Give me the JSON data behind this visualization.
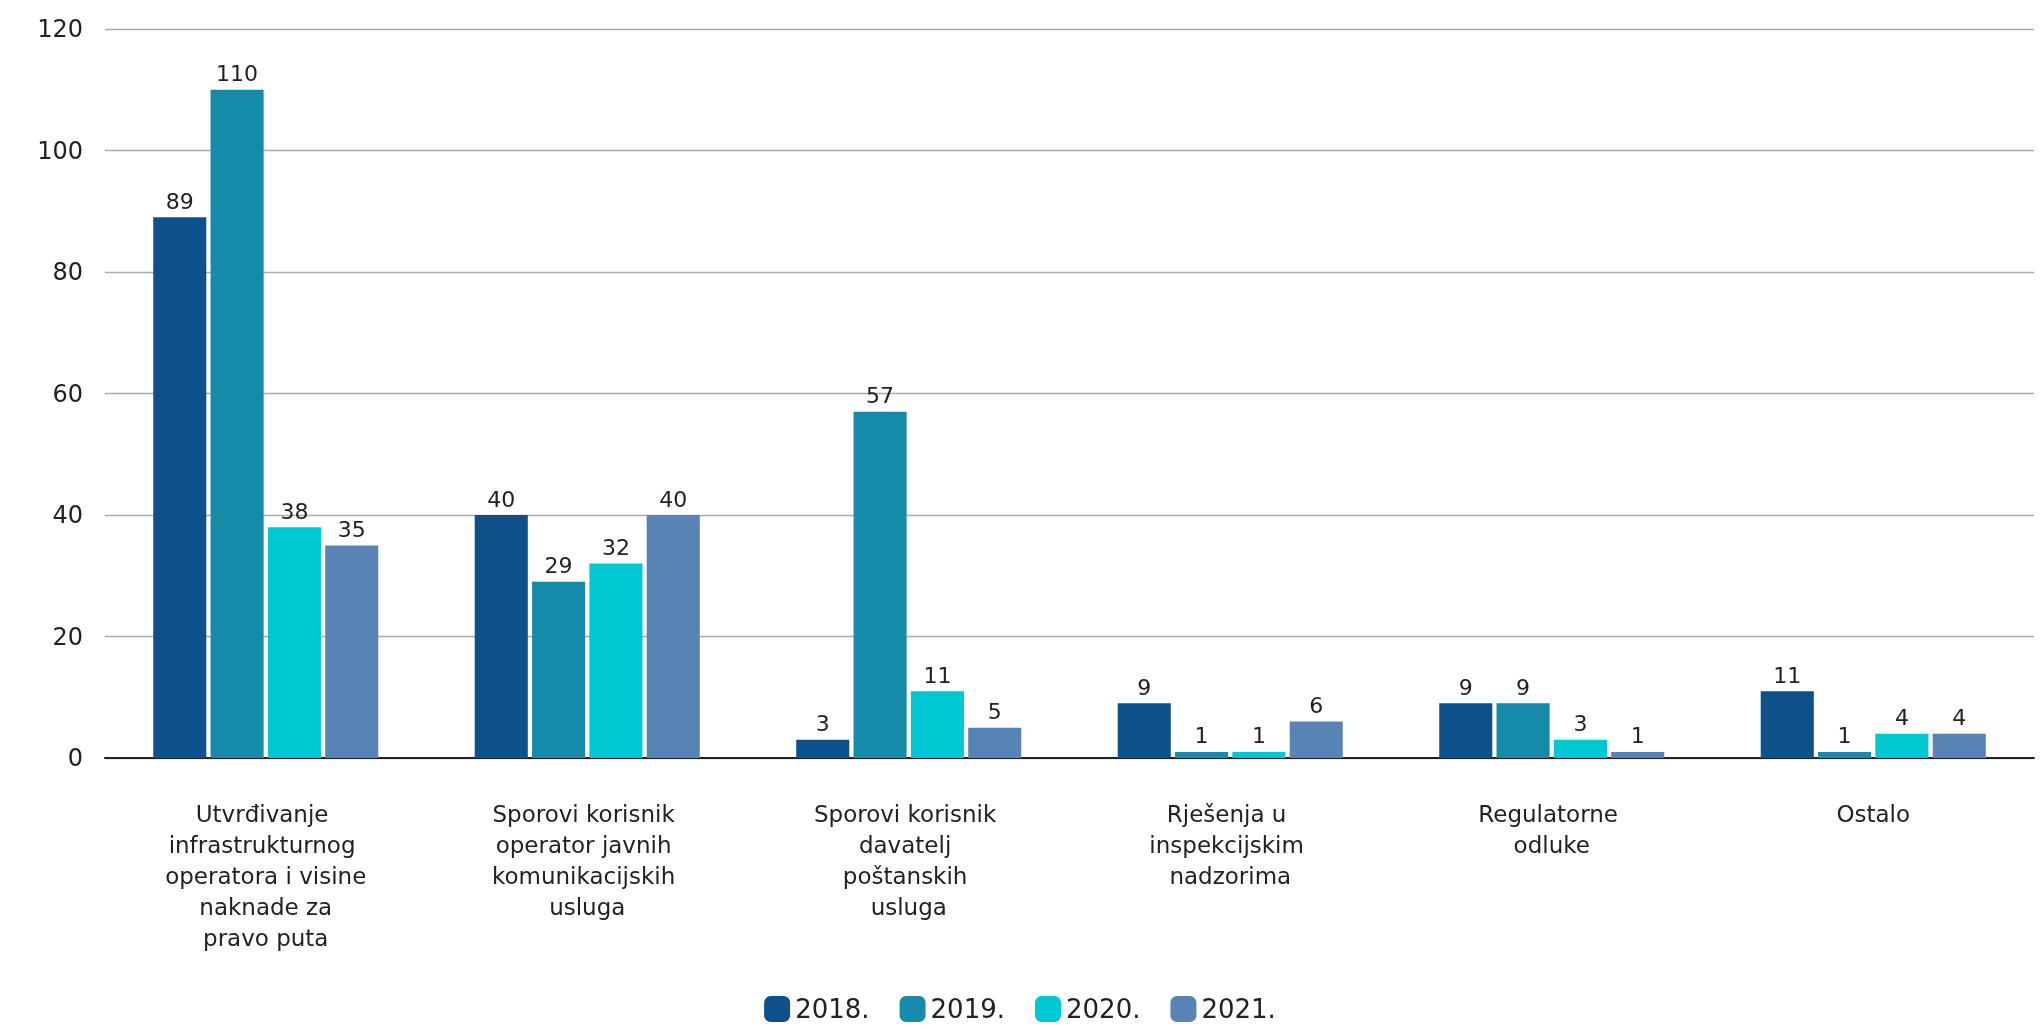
{
  "chart_data": {
    "type": "bar",
    "categories": [
      "Utvrđivanje infrastrukturnog operatora i visine naknade za pravo puta",
      "Sporovi korisnik operator javnih komunikacijskih usluga",
      "Sporovi korisnik davatelj poštanskih usluga",
      "Rješenja u inspekcijskim nadzorima",
      "Regulatorne odluke",
      "Ostalo"
    ],
    "series": [
      {
        "name": "2018.",
        "color": "#0e508a",
        "values": [
          89,
          40,
          3,
          9,
          9,
          11
        ]
      },
      {
        "name": "2019.",
        "color": "#158aa9",
        "values": [
          110,
          29,
          57,
          1,
          9,
          1
        ]
      },
      {
        "name": "2020.",
        "color": "#00c8d3",
        "values": [
          38,
          32,
          11,
          1,
          3,
          4
        ]
      },
      {
        "name": "2021.",
        "color": "#5884b5",
        "values": [
          35,
          40,
          5,
          6,
          1,
          4
        ]
      }
    ],
    "ylim": [
      0,
      120
    ],
    "yticks": [
      0,
      20,
      40,
      60,
      80,
      100,
      120
    ],
    "grid": "y",
    "legend": "bottom",
    "data_labels": true
  }
}
